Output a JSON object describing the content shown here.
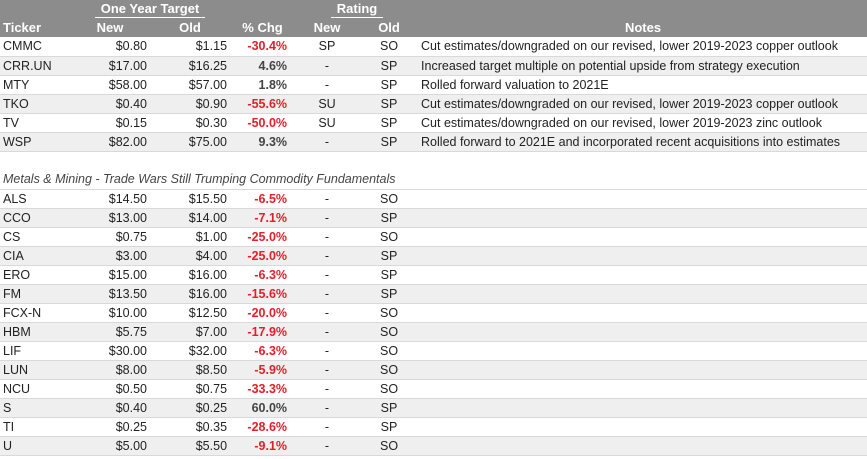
{
  "header": {
    "group_target": "One Year Target",
    "group_rating": "Rating",
    "col_ticker": "Ticker",
    "col_new": "New",
    "col_old": "Old",
    "col_chg": "% Chg",
    "col_rating_new": "New",
    "col_rating_old": "Old",
    "col_notes": "Notes"
  },
  "rows": [
    {
      "ticker": "CMMC",
      "new": "$0.80",
      "old": "$1.15",
      "chg": "-30.4%",
      "rnew": "SP",
      "rold": "SO",
      "notes": "Cut estimates/downgraded on our revised, lower 2019-2023 copper outlook"
    },
    {
      "ticker": "CRR.UN",
      "new": "$17.00",
      "old": "$16.25",
      "chg": "4.6%",
      "rnew": "-",
      "rold": "SP",
      "notes": "Increased target multiple on potential upside from strategy execution"
    },
    {
      "ticker": "MTY",
      "new": "$58.00",
      "old": "$57.00",
      "chg": "1.8%",
      "rnew": "-",
      "rold": "SP",
      "notes": "Rolled forward valuation to 2021E"
    },
    {
      "ticker": "TKO",
      "new": "$0.40",
      "old": "$0.90",
      "chg": "-55.6%",
      "rnew": "SU",
      "rold": "SP",
      "notes": "Cut estimates/downgraded on our revised, lower 2019-2023 copper outlook"
    },
    {
      "ticker": "TV",
      "new": "$0.15",
      "old": "$0.30",
      "chg": "-50.0%",
      "rnew": "SU",
      "rold": "SP",
      "notes": "Cut estimates/downgraded on our revised, lower 2019-2023 zinc outlook"
    },
    {
      "ticker": "WSP",
      "new": "$82.00",
      "old": "$75.00",
      "chg": "9.3%",
      "rnew": "-",
      "rold": "SP",
      "notes": "Rolled forward to 2021E and incorporated recent acquisitions into estimates"
    }
  ],
  "section_title": "Metals & Mining - Trade Wars Still Trumping Commodity Fundamentals",
  "section_rows": [
    {
      "ticker": "ALS",
      "new": "$14.50",
      "old": "$15.50",
      "chg": "-6.5%",
      "rnew": "-",
      "rold": "SO"
    },
    {
      "ticker": "CCO",
      "new": "$13.00",
      "old": "$14.00",
      "chg": "-7.1%",
      "rnew": "-",
      "rold": "SP"
    },
    {
      "ticker": "CS",
      "new": "$0.75",
      "old": "$1.00",
      "chg": "-25.0%",
      "rnew": "-",
      "rold": "SO"
    },
    {
      "ticker": "CIA",
      "new": "$3.00",
      "old": "$4.00",
      "chg": "-25.0%",
      "rnew": "-",
      "rold": "SP"
    },
    {
      "ticker": "ERO",
      "new": "$15.00",
      "old": "$16.00",
      "chg": "-6.3%",
      "rnew": "-",
      "rold": "SP"
    },
    {
      "ticker": "FM",
      "new": "$13.50",
      "old": "$16.00",
      "chg": "-15.6%",
      "rnew": "-",
      "rold": "SP"
    },
    {
      "ticker": "FCX-N",
      "new": "$10.00",
      "old": "$12.50",
      "chg": "-20.0%",
      "rnew": "-",
      "rold": "SO"
    },
    {
      "ticker": "HBM",
      "new": "$5.75",
      "old": "$7.00",
      "chg": "-17.9%",
      "rnew": "-",
      "rold": "SO"
    },
    {
      "ticker": "LIF",
      "new": "$30.00",
      "old": "$32.00",
      "chg": "-6.3%",
      "rnew": "-",
      "rold": "SO"
    },
    {
      "ticker": "LUN",
      "new": "$8.00",
      "old": "$8.50",
      "chg": "-5.9%",
      "rnew": "-",
      "rold": "SO"
    },
    {
      "ticker": "NCU",
      "new": "$0.50",
      "old": "$0.75",
      "chg": "-33.3%",
      "rnew": "-",
      "rold": "SO"
    },
    {
      "ticker": "S",
      "new": "$0.40",
      "old": "$0.25",
      "chg": "60.0%",
      "rnew": "-",
      "rold": "SP"
    },
    {
      "ticker": "TI",
      "new": "$0.25",
      "old": "$0.35",
      "chg": "-28.6%",
      "rnew": "-",
      "rold": "SP"
    },
    {
      "ticker": "U",
      "new": "$5.00",
      "old": "$5.50",
      "chg": "-9.1%",
      "rnew": "-",
      "rold": "SO"
    }
  ],
  "colors": {
    "header_bg": "#8c8c8c",
    "negative": "#e0202a",
    "stripe": "#efefef"
  }
}
